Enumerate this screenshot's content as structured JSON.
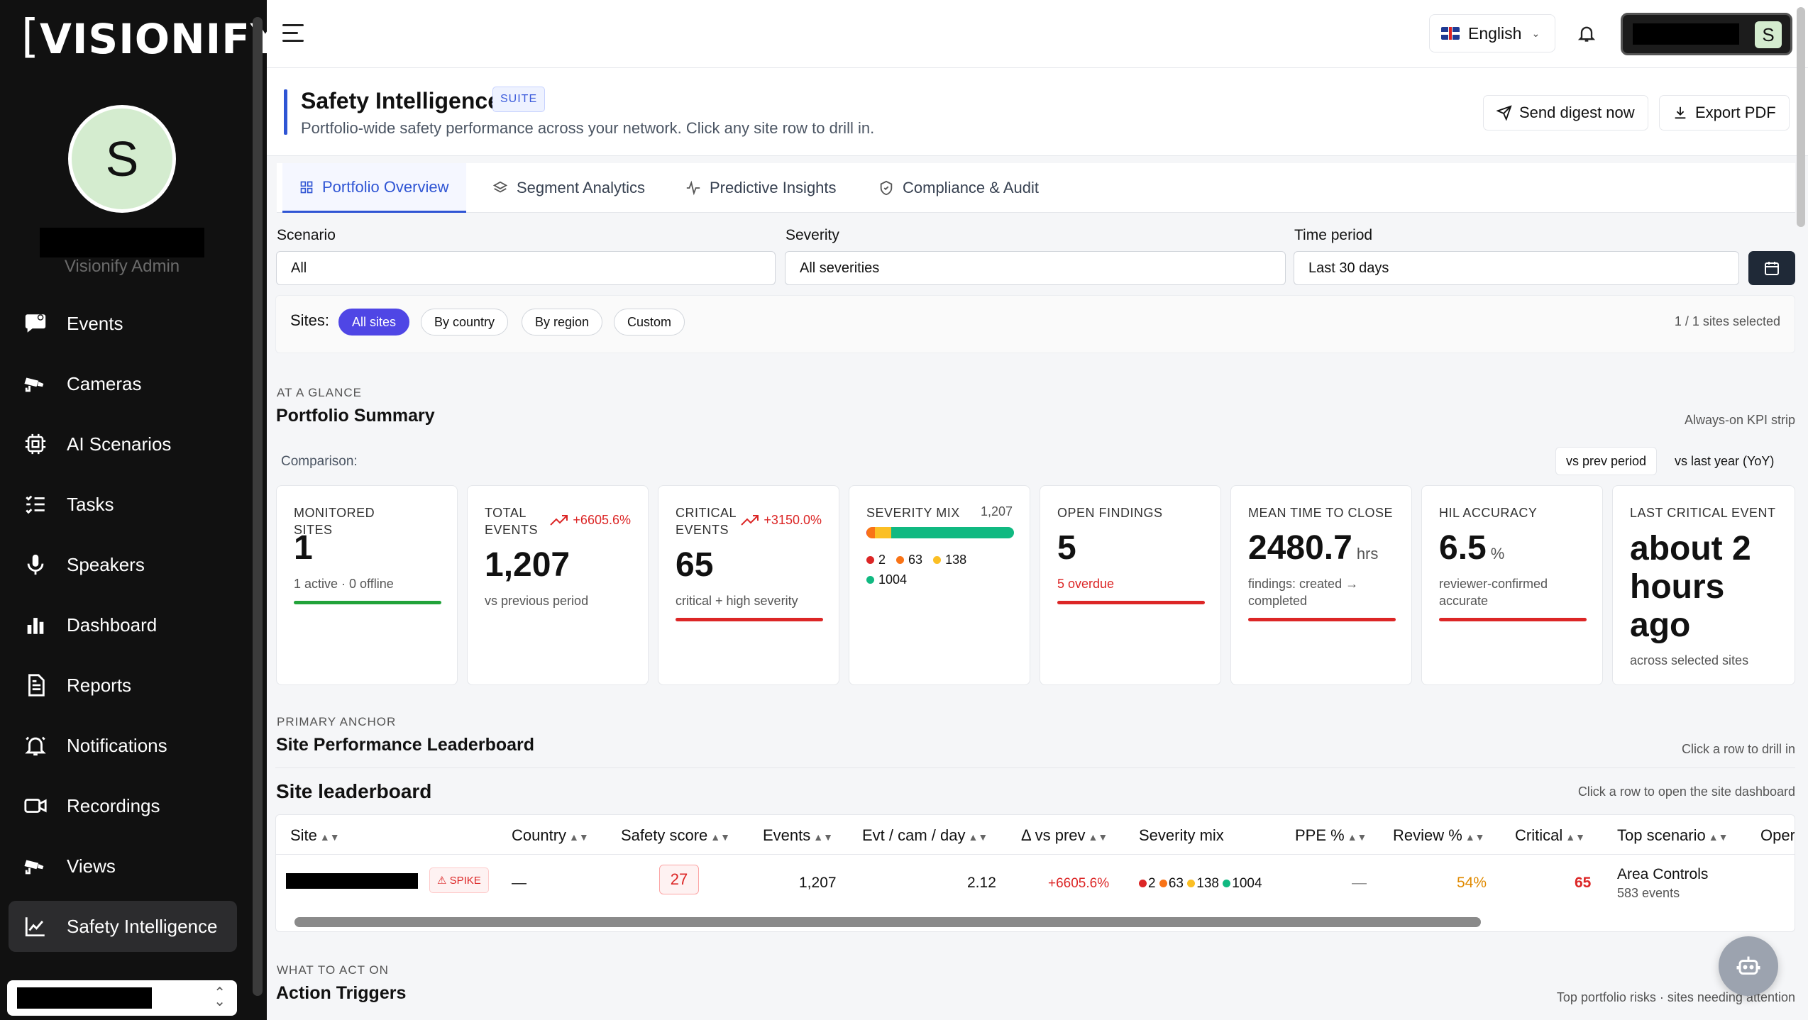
{
  "sidebar": {
    "logo": "VISIONIFY",
    "avatar_letter": "S",
    "user_role": "Visionify Admin",
    "items": [
      {
        "label": "Events",
        "icon": "chat-bubble-icon"
      },
      {
        "label": "Cameras",
        "icon": "cctv-icon"
      },
      {
        "label": "AI Scenarios",
        "icon": "chip-icon"
      },
      {
        "label": "Tasks",
        "icon": "checklist-icon"
      },
      {
        "label": "Speakers",
        "icon": "microphone-icon"
      },
      {
        "label": "Dashboard",
        "icon": "bar-chart-icon"
      },
      {
        "label": "Reports",
        "icon": "document-icon"
      },
      {
        "label": "Notifications",
        "icon": "bell-icon"
      },
      {
        "label": "Recordings",
        "icon": "video-icon"
      },
      {
        "label": "Views",
        "icon": "cctv-icon"
      },
      {
        "label": "Safety Intelligence",
        "icon": "line-chart-icon",
        "active": true
      }
    ]
  },
  "topbar": {
    "language": "English",
    "user_avatar_letter": "S"
  },
  "header": {
    "title": "Safety Intelligence",
    "badge": "SUITE",
    "subtitle": "Portfolio-wide safety performance across your network. Click any site row to drill in.",
    "send_digest": "Send digest now",
    "export_pdf": "Export PDF"
  },
  "tabs": [
    {
      "label": "Portfolio Overview",
      "active": true
    },
    {
      "label": "Segment Analytics"
    },
    {
      "label": "Predictive Insights"
    },
    {
      "label": "Compliance & Audit"
    }
  ],
  "filters": {
    "scenario_label": "Scenario",
    "scenario_value": "All",
    "severity_label": "Severity",
    "severity_value": "All severities",
    "period_label": "Time period",
    "period_value": "Last 30 days",
    "sites_label": "Sites:",
    "site_chips": [
      "All sites",
      "By country",
      "By region",
      "Custom"
    ],
    "sites_selected": "1 / 1 sites selected"
  },
  "summary": {
    "kicker": "AT A GLANCE",
    "title": "Portfolio Summary",
    "note": "Always-on KPI strip",
    "comparison_label": "Comparison:",
    "comparison_options": [
      "vs prev period",
      "vs last year (YoY)"
    ]
  },
  "kpis": {
    "monitored_sites": {
      "label": "MONITORED SITES",
      "value": "1",
      "note": "1 active · 0 offline"
    },
    "total_events": {
      "label": "TOTAL EVENTS",
      "trend": "+6605.6%",
      "value": "1,207",
      "note": "vs previous period"
    },
    "critical_events": {
      "label": "CRITICAL EVENTS",
      "trend": "+3150.0%",
      "value": "65",
      "note": "critical + high severity"
    },
    "severity_mix": {
      "label": "SEVERITY MIX",
      "total": "1,207",
      "counts": [
        "2",
        "63",
        "138",
        "1004"
      ]
    },
    "open_findings": {
      "label": "OPEN FINDINGS",
      "value": "5",
      "note": "5 overdue"
    },
    "mean_time": {
      "label": "MEAN TIME TO CLOSE",
      "value": "2480.7",
      "unit": "hrs",
      "note": "findings: created → completed"
    },
    "hil_accuracy": {
      "label": "HIL ACCURACY",
      "value": "6.5",
      "unit": "%",
      "note": "reviewer-confirmed accurate"
    },
    "last_critical": {
      "label": "LAST CRITICAL EVENT",
      "value": "about 2 hours ago",
      "note": "across selected sites"
    }
  },
  "leaderboard": {
    "kicker": "PRIMARY ANCHOR",
    "title": "Site Performance Leaderboard",
    "note": "Click a row to drill in",
    "table_title": "Site leaderboard",
    "table_note": "Click a row to open the site dashboard",
    "columns": [
      "Site",
      "Country",
      "Safety score",
      "Events",
      "Evt / cam / day",
      "Δ vs prev",
      "Severity mix",
      "PPE %",
      "Review %",
      "Critical",
      "Top scenario",
      "Oper"
    ],
    "sort_glyph": "▲▼",
    "row": {
      "badge": "SPIKE",
      "country": "—",
      "safety_score": "27",
      "events": "1,207",
      "evt_per_cam_day": "2.12",
      "delta": "+6605.6%",
      "severity": [
        "2",
        "63",
        "138",
        "1004"
      ],
      "ppe": "—",
      "review": "54%",
      "critical": "65",
      "top_scenario": "Area Controls",
      "top_scenario_events": "583 events"
    }
  },
  "actions": {
    "kicker": "WHAT TO ACT ON",
    "title": "Action Triggers",
    "note": "Top portfolio risks · sites needing attention"
  },
  "colors": {
    "accent": "#2f55d4",
    "chip_active": "#4f46e5",
    "danger": "#dc2626",
    "success": "#22a33a",
    "warning": "#e08a00",
    "sev_critical": "#dc2626",
    "sev_high": "#f97316",
    "sev_medium": "#fbbf24",
    "sev_low": "#10b981"
  }
}
